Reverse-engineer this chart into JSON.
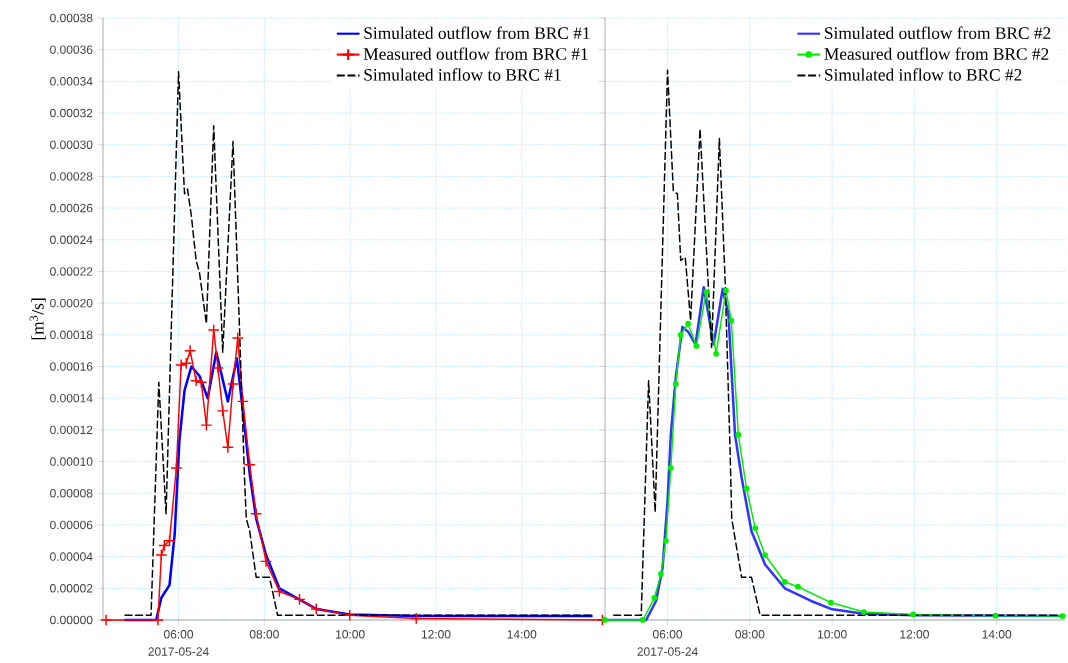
{
  "chart_data": [
    {
      "type": "line",
      "xlim": [
        4.24,
        15.94
      ],
      "ylim": [
        0,
        0.00038
      ],
      "ylabel": "[m$^{3}$/s]",
      "grid": true,
      "legend": "top right",
      "annotations": [
        "2017-05-24"
      ],
      "xticks": [
        {
          "value": 6,
          "label": "06:00"
        },
        {
          "value": 8,
          "label": "08:00"
        },
        {
          "value": 10,
          "label": "10:00"
        },
        {
          "value": 12,
          "label": "12:00"
        },
        {
          "value": 14,
          "label": "14:00"
        }
      ],
      "yticks": [
        {
          "value": 0,
          "label": "0.00000"
        },
        {
          "value": 2e-05,
          "label": "0.00002"
        },
        {
          "value": 4e-05,
          "label": "0.00004"
        },
        {
          "value": 6e-05,
          "label": "0.00006"
        },
        {
          "value": 8e-05,
          "label": "0.00008"
        },
        {
          "value": 0.0001,
          "label": "0.00010"
        },
        {
          "value": 0.00012,
          "label": "0.00012"
        },
        {
          "value": 0.00014,
          "label": "0.00014"
        },
        {
          "value": 0.00016,
          "label": "0.00016"
        },
        {
          "value": 0.00018,
          "label": "0.00018"
        },
        {
          "value": 0.0002,
          "label": "0.00020"
        },
        {
          "value": 0.00022,
          "label": "0.00022"
        },
        {
          "value": 0.00024,
          "label": "0.00024"
        },
        {
          "value": 0.00026,
          "label": "0.00026"
        },
        {
          "value": 0.00028,
          "label": "0.00028"
        },
        {
          "value": 0.0003,
          "label": "0.00030"
        },
        {
          "value": 0.00032,
          "label": "0.00032"
        },
        {
          "value": 0.00034,
          "label": "0.00034"
        },
        {
          "value": 0.00036,
          "label": "0.00036"
        },
        {
          "value": 0.00038,
          "label": "0.00038"
        }
      ],
      "series": [
        {
          "name": "Simulated inflow to BRC #1",
          "color": "#000000",
          "line_style": "dashed",
          "marker": "none",
          "x": [
            4.74,
            5.36,
            5.54,
            5.71,
            6.0,
            6.14,
            6.21,
            6.3,
            6.41,
            6.49,
            6.65,
            6.82,
            7.03,
            7.27,
            7.42,
            7.54,
            7.58,
            7.66,
            7.81,
            8.12,
            8.31,
            15.65
          ],
          "values": [
            3e-06,
            3e-06,
            0.00015,
            6.7e-05,
            0.000346,
            0.000269,
            0.000272,
            0.000255,
            0.000227,
            0.000219,
            0.000187,
            0.000312,
            0.000169,
            0.000302,
            0.000185,
            8.8e-05,
            6.4e-05,
            5.6e-05,
            2.7e-05,
            2.7e-05,
            3e-06,
            3e-06
          ]
        },
        {
          "name": "Simulated outflow from BRC #1",
          "color": "#0000ff",
          "line_style": "solid",
          "marker": "none",
          "x": [
            4.74,
            5.48,
            5.6,
            5.79,
            5.91,
            6.02,
            6.14,
            6.3,
            6.49,
            6.68,
            6.88,
            7.15,
            7.36,
            7.5,
            7.66,
            7.81,
            8.04,
            8.35,
            9.21,
            9.99,
            11.54,
            15.65
          ],
          "values": [
            0,
            0,
            1.4e-05,
            2.2e-05,
            5.4e-05,
            0.000113,
            0.000145,
            0.00016,
            0.000154,
            0.00014,
            0.000169,
            0.000138,
            0.000165,
            0.000132,
            9.2e-05,
            6.4e-05,
            4.1e-05,
            2e-05,
            7e-06,
            3.5e-06,
            2.5e-06,
            2.5e-06
          ]
        },
        {
          "name": "Measured outflow from BRC #1",
          "color": "#ff0000",
          "line_style": "solid",
          "marker": "cross",
          "x": [
            4.31,
            5.52,
            5.6,
            5.67,
            5.79,
            5.95,
            6.06,
            6.18,
            6.27,
            6.41,
            6.53,
            6.65,
            6.82,
            6.92,
            7.03,
            7.15,
            7.27,
            7.38,
            7.5,
            7.66,
            7.81,
            8.04,
            8.35,
            8.82,
            9.21,
            9.99,
            11.54,
            15.88
          ],
          "values": [
            0,
            0,
            4.1e-05,
            4.7e-05,
            5e-05,
            9.6e-05,
            0.000161,
            0.000162,
            0.00017,
            0.000151,
            0.00015,
            0.000123,
            0.000183,
            0.000159,
            0.000132,
            0.000109,
            0.000149,
            0.000178,
            0.000138,
            9.8e-05,
            6.7e-05,
            3.7e-05,
            1.8e-05,
            1.3e-05,
            7e-06,
            3e-06,
            1e-06,
            0
          ]
        }
      ]
    },
    {
      "type": "line",
      "xlim": [
        4.48,
        15.66
      ],
      "ylim": [
        0,
        0.00038
      ],
      "grid": true,
      "legend": "top right",
      "tick_labels": "x",
      "annotations": [
        "2017-05-24"
      ],
      "xticks": [
        {
          "value": 6,
          "label": "06:00"
        },
        {
          "value": 8,
          "label": "08:00"
        },
        {
          "value": 10,
          "label": "10:00"
        },
        {
          "value": 12,
          "label": "12:00"
        },
        {
          "value": 14,
          "label": "14:00"
        }
      ],
      "yticks": [
        0,
        2e-05,
        4e-05,
        6e-05,
        8e-05,
        0.0001,
        0.00012,
        0.00014,
        0.00016,
        0.00018,
        0.0002,
        0.00022,
        0.00024,
        0.00026,
        0.00028,
        0.0003,
        0.00032,
        0.00034,
        0.00036,
        0.00038
      ],
      "series": [
        {
          "name": "Simulated inflow to BRC #2",
          "color": "#000000",
          "line_style": "dashed",
          "marker": "none",
          "x": [
            4.68,
            5.36,
            5.54,
            5.7,
            6.0,
            6.14,
            6.24,
            6.32,
            6.43,
            6.56,
            6.79,
            7.07,
            7.26,
            7.4,
            7.52,
            7.56,
            7.8,
            8.04,
            8.25,
            15.6
          ],
          "values": [
            3e-06,
            3e-06,
            0.000151,
            6.8e-05,
            0.000347,
            0.000271,
            0.000269,
            0.000227,
            0.000229,
            0.000189,
            0.00031,
            0.000172,
            0.000304,
            0.000214,
            0.000107,
            6.4e-05,
            2.7e-05,
            2.7e-05,
            3e-06,
            3e-06
          ]
        },
        {
          "name": "Simulated outflow from BRC #2",
          "color": "#3333ff",
          "line_style": "solid",
          "marker": "none",
          "x": [
            4.48,
            5.48,
            5.72,
            5.88,
            6.0,
            6.08,
            6.2,
            6.36,
            6.5,
            6.68,
            6.88,
            7.12,
            7.34,
            7.48,
            7.64,
            7.8,
            8.04,
            8.37,
            8.85,
            9.49,
            9.97,
            10.77,
            11.97,
            15.6
          ],
          "values": [
            0,
            0,
            1.2e-05,
            3.3e-05,
            7.5e-05,
            0.000117,
            0.000153,
            0.000185,
            0.000182,
            0.000174,
            0.00021,
            0.000174,
            0.000209,
            0.000193,
            0.000117,
            9e-05,
            5.6e-05,
            3.5e-05,
            2e-05,
            1.2e-05,
            7e-06,
            4e-06,
            3e-06,
            2.5e-06
          ]
        },
        {
          "name": "Measured outflow from BRC #2",
          "color": "#00ee00",
          "line_style": "solid",
          "marker": "circle",
          "x": [
            4.48,
            5.4,
            5.68,
            5.84,
            5.96,
            6.08,
            6.2,
            6.32,
            6.5,
            6.7,
            6.94,
            7.18,
            7.42,
            7.55,
            7.72,
            7.92,
            8.13,
            8.37,
            8.85,
            9.17,
            9.97,
            10.77,
            11.97,
            13.97,
            15.6
          ],
          "values": [
            0,
            0,
            1.4e-05,
            2.9e-05,
            5e-05,
            9.6e-05,
            0.000149,
            0.00018,
            0.000187,
            0.000173,
            0.000207,
            0.000168,
            0.000208,
            0.000189,
            0.000117,
            8.3e-05,
            5.8e-05,
            4.1e-05,
            2.4e-05,
            2.1e-05,
            1.1e-05,
            5e-06,
            3.5e-06,
            2.7e-06,
            2.5e-06
          ]
        }
      ]
    }
  ]
}
